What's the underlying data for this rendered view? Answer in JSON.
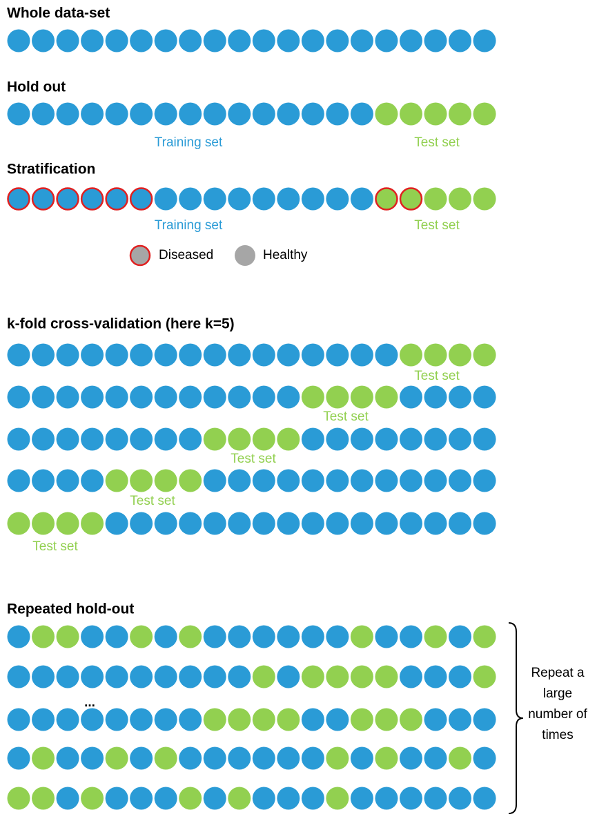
{
  "sections": [
    {
      "title": "Whole data-set"
    },
    {
      "title": "Hold out",
      "labels": [
        "Training set",
        "Test set"
      ]
    },
    {
      "title": "Stratification",
      "labels": [
        "Training set",
        "Test set"
      ],
      "legend": [
        "Diseased",
        "Healthy"
      ]
    },
    {
      "title": "k-fold cross-validation (here k=5)",
      "labels": [
        "Test set",
        "Test set",
        "Test set",
        "Test set",
        "Test set"
      ]
    },
    {
      "title": "Repeated hold-out",
      "ellipsis": "...",
      "note": [
        "Repeat a",
        "large",
        "number of",
        "times"
      ]
    }
  ]
}
